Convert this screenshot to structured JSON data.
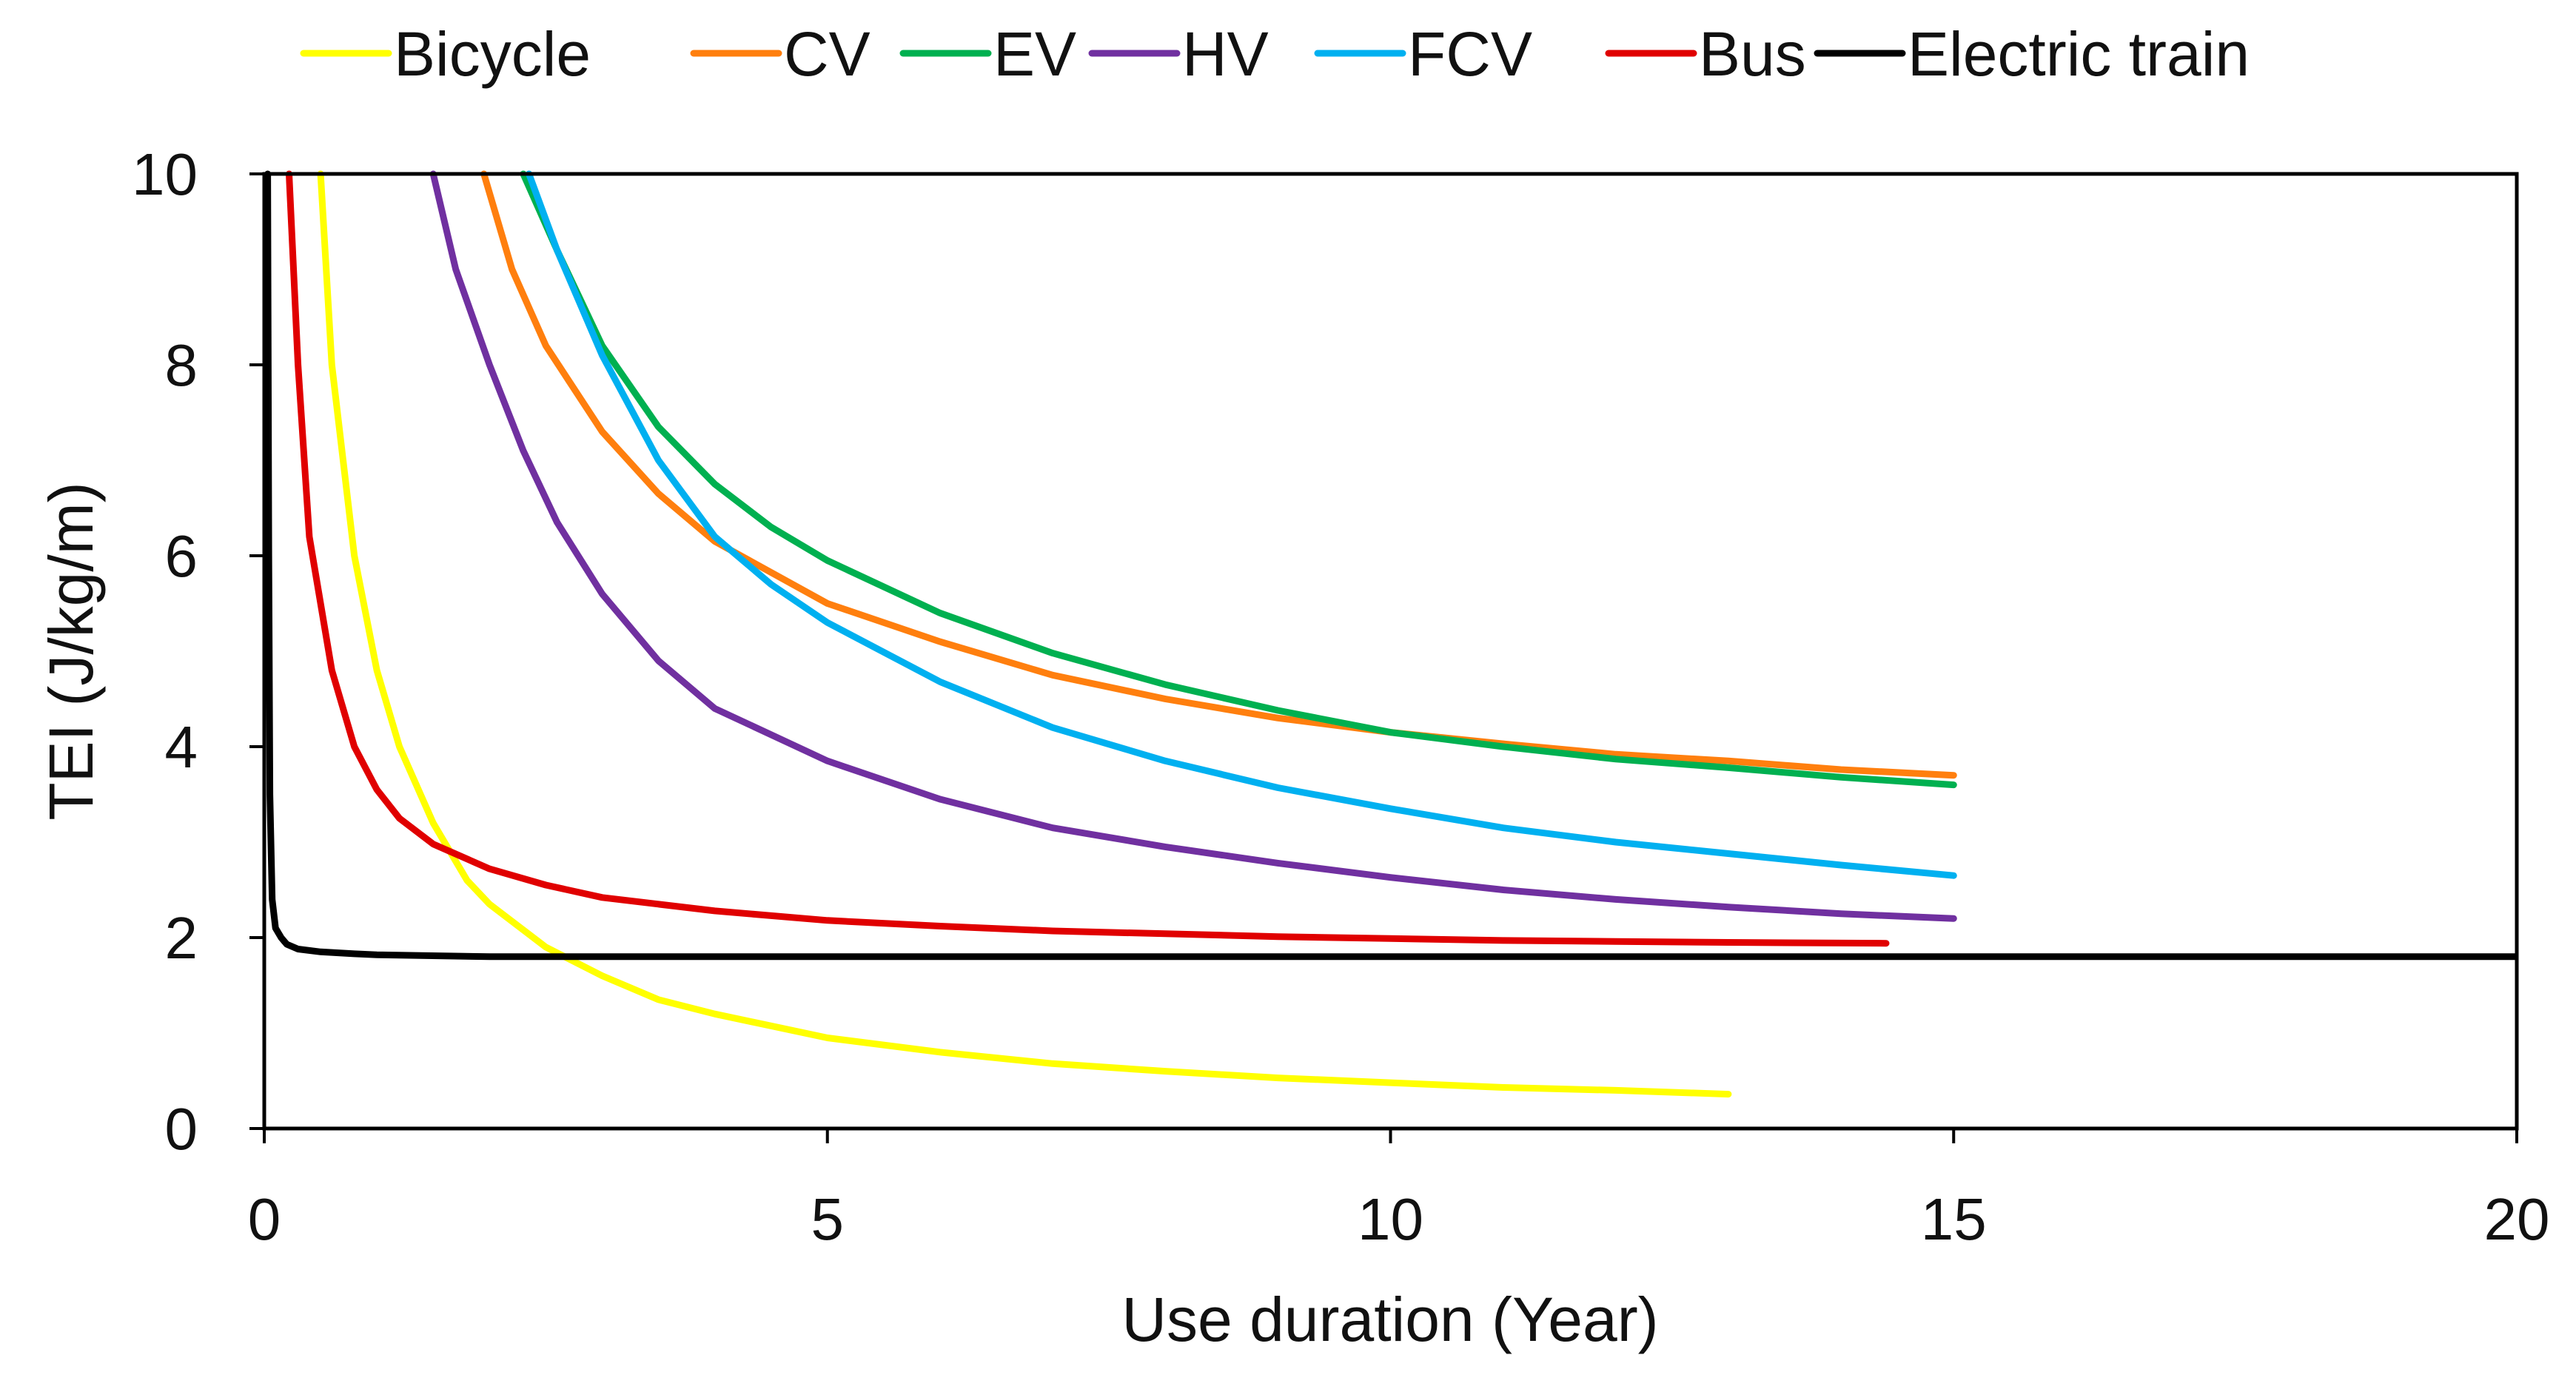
{
  "chart_data": {
    "type": "line",
    "title": "",
    "xlabel": "Use duration (Year)",
    "ylabel": "TEI (J/kg/m)",
    "xlim": [
      0,
      20
    ],
    "ylim": [
      0,
      10
    ],
    "xticks": [
      0,
      5,
      10,
      15,
      20
    ],
    "yticks": [
      0,
      2,
      4,
      6,
      8,
      10
    ],
    "legend_position": "top",
    "grid": false,
    "series": [
      {
        "name": "Bicycle",
        "color": "#FFFF00",
        "x": [
          0.5,
          0.6,
          0.7,
          0.8,
          1.0,
          1.2,
          1.5,
          1.8,
          2.0,
          2.5,
          3.0,
          3.5,
          4.0,
          5.0,
          6.0,
          7.0,
          8.0,
          9.0,
          10.0,
          11.0,
          12.0,
          13.0
        ],
        "y": [
          10.0,
          8.0,
          7.0,
          6.0,
          4.8,
          4.0,
          3.2,
          2.6,
          2.35,
          1.9,
          1.6,
          1.35,
          1.2,
          0.95,
          0.8,
          0.68,
          0.6,
          0.53,
          0.48,
          0.43,
          0.4,
          0.36
        ]
      },
      {
        "name": "CV",
        "color": "#FF7F0E",
        "x": [
          1.95,
          2.2,
          2.5,
          3.0,
          3.5,
          4.0,
          5.0,
          6.0,
          7.0,
          8.0,
          9.0,
          10.0,
          11.0,
          12.0,
          13.0,
          14.0,
          15.0
        ],
        "y": [
          10.0,
          9.0,
          8.2,
          7.3,
          6.65,
          6.15,
          5.5,
          5.1,
          4.75,
          4.5,
          4.3,
          4.15,
          4.03,
          3.92,
          3.85,
          3.76,
          3.7
        ]
      },
      {
        "name": "EV",
        "color": "#00B050",
        "x": [
          2.3,
          2.6,
          3.0,
          3.5,
          4.0,
          4.5,
          5.0,
          6.0,
          7.0,
          8.0,
          9.0,
          10.0,
          11.0,
          12.0,
          13.0,
          14.0,
          15.0
        ],
        "y": [
          10.0,
          9.2,
          8.2,
          7.35,
          6.75,
          6.3,
          5.95,
          5.4,
          4.98,
          4.65,
          4.38,
          4.15,
          4.0,
          3.87,
          3.78,
          3.68,
          3.6
        ]
      },
      {
        "name": "HV",
        "color": "#7030A0",
        "x": [
          1.5,
          1.7,
          2.0,
          2.3,
          2.6,
          3.0,
          3.5,
          4.0,
          5.0,
          6.0,
          7.0,
          8.0,
          9.0,
          10.0,
          11.0,
          12.0,
          13.0,
          14.0,
          15.0
        ],
        "y": [
          10.0,
          9.0,
          8.0,
          7.1,
          6.35,
          5.6,
          4.9,
          4.4,
          3.85,
          3.45,
          3.15,
          2.95,
          2.78,
          2.63,
          2.5,
          2.4,
          2.32,
          2.25,
          2.2
        ]
      },
      {
        "name": "FCV",
        "color": "#00B0F0",
        "x": [
          2.35,
          2.6,
          3.0,
          3.5,
          4.0,
          4.5,
          5.0,
          6.0,
          7.0,
          8.0,
          9.0,
          10.0,
          11.0,
          12.0,
          13.0,
          14.0,
          15.0
        ],
        "y": [
          10.0,
          9.2,
          8.1,
          7.0,
          6.2,
          5.7,
          5.3,
          4.68,
          4.2,
          3.85,
          3.57,
          3.35,
          3.15,
          3.0,
          2.88,
          2.76,
          2.65
        ]
      },
      {
        "name": "Bus",
        "color": "#E00000",
        "x": [
          0.22,
          0.3,
          0.4,
          0.6,
          0.8,
          1.0,
          1.2,
          1.5,
          2.0,
          2.5,
          3.0,
          4.0,
          5.0,
          6.0,
          7.0,
          8.0,
          9.0,
          10.0,
          11.0,
          12.0,
          13.0,
          14.4
        ],
        "y": [
          10.0,
          8.0,
          6.2,
          4.8,
          4.0,
          3.55,
          3.25,
          2.98,
          2.72,
          2.55,
          2.42,
          2.28,
          2.18,
          2.12,
          2.07,
          2.04,
          2.01,
          1.99,
          1.97,
          1.96,
          1.95,
          1.94
        ]
      },
      {
        "name": "Electric train",
        "color": "#000000",
        "x": [
          0.03,
          0.04,
          0.05,
          0.07,
          0.1,
          0.15,
          0.2,
          0.3,
          0.5,
          0.8,
          1.0,
          2.0,
          3.0,
          5.0,
          10.0,
          15.0,
          20.0
        ],
        "y": [
          10.0,
          6.0,
          3.5,
          2.4,
          2.1,
          2.0,
          1.93,
          1.88,
          1.85,
          1.83,
          1.82,
          1.8,
          1.8,
          1.8,
          1.8,
          1.8,
          1.8
        ]
      }
    ]
  }
}
